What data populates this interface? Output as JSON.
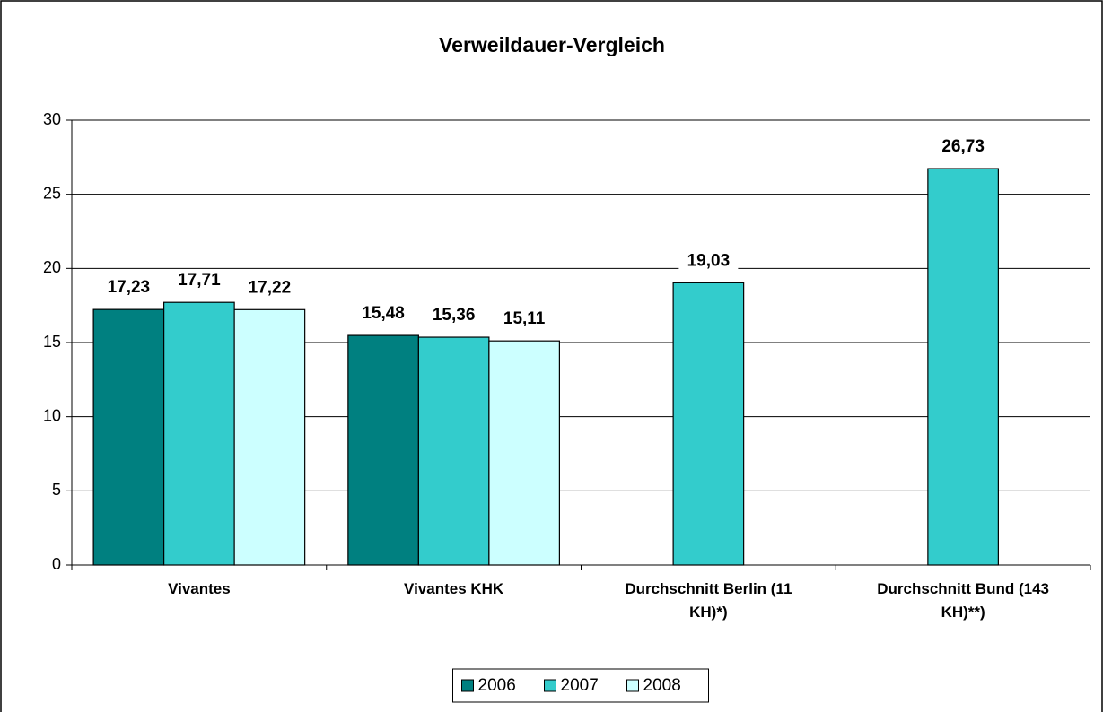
{
  "chart_data": {
    "type": "bar",
    "title": "Verweildauer-Vergleich",
    "categories": [
      "Vivantes",
      "Vivantes KHK",
      "Durchschnitt Berlin (11 KH)*)",
      "Durchschnitt Bund (143 KH)**)"
    ],
    "series": [
      {
        "name": "2006",
        "color": "#008080",
        "values": [
          17.23,
          15.48,
          null,
          null
        ],
        "value_labels": [
          "17,23",
          "15,48",
          null,
          null
        ]
      },
      {
        "name": "2007",
        "color": "#33cccc",
        "values": [
          17.71,
          15.36,
          19.03,
          26.73
        ],
        "value_labels": [
          "17,71",
          "15,36",
          "19,03",
          "26,73"
        ]
      },
      {
        "name": "2008",
        "color": "#ccffff",
        "values": [
          17.22,
          15.11,
          null,
          null
        ],
        "value_labels": [
          "17,22",
          "15,11",
          null,
          null
        ]
      }
    ],
    "ylim": [
      0,
      30
    ],
    "yticks": [
      0,
      5,
      10,
      15,
      20,
      25,
      30
    ],
    "grid": true,
    "legend": "bottom"
  }
}
